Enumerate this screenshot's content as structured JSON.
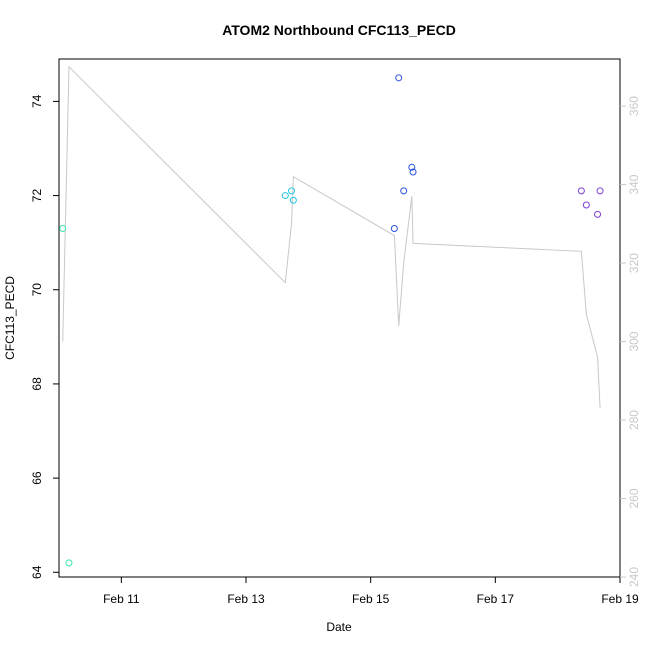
{
  "chart_data": {
    "type": "scatter",
    "title": "ATOM2 Northbound CFC113_PECD",
    "xlabel": "Date",
    "ylabel": "CFC113_PECD",
    "x_ticks": [
      {
        "day": 11,
        "label": "Feb 11"
      },
      {
        "day": 13,
        "label": "Feb 13"
      },
      {
        "day": 15,
        "label": "Feb 15"
      },
      {
        "day": 17,
        "label": "Feb 17"
      },
      {
        "day": 19,
        "label": "Feb 19"
      }
    ],
    "xlim_days": [
      10.0,
      19.0
    ],
    "ylim": [
      63.9,
      74.9
    ],
    "y_ticks": [
      64,
      66,
      68,
      70,
      72,
      74
    ],
    "y2lim": [
      240,
      372
    ],
    "y2_ticks": [
      240,
      260,
      280,
      300,
      320,
      340,
      360
    ],
    "y2_color": "#c8c8c8",
    "points": [
      {
        "day": 10.06,
        "y": 71.3,
        "color": "#3be8b0"
      },
      {
        "day": 10.16,
        "y": 64.2,
        "color": "#3be8b0"
      },
      {
        "day": 13.63,
        "y": 72.0,
        "color": "#1ec6e0"
      },
      {
        "day": 13.73,
        "y": 72.1,
        "color": "#1ec6e0"
      },
      {
        "day": 13.76,
        "y": 71.9,
        "color": "#1ec6e0"
      },
      {
        "day": 15.38,
        "y": 71.3,
        "color": "#2a52e0"
      },
      {
        "day": 15.45,
        "y": 74.5,
        "color": "#2a52e0"
      },
      {
        "day": 15.53,
        "y": 72.1,
        "color": "#2a52e0"
      },
      {
        "day": 15.66,
        "y": 72.6,
        "color": "#2a52e0"
      },
      {
        "day": 15.68,
        "y": 72.5,
        "color": "#2a52e0"
      },
      {
        "day": 18.38,
        "y": 72.1,
        "color": "#7a3fd8"
      },
      {
        "day": 18.46,
        "y": 71.8,
        "color": "#7a3fd8"
      },
      {
        "day": 18.64,
        "y": 71.6,
        "color": "#7a3fd8"
      },
      {
        "day": 18.68,
        "y": 72.1,
        "color": "#7a3fd8"
      }
    ],
    "line_series": {
      "axis": "right",
      "color": "#c8c8c8",
      "points": [
        {
          "day": 10.06,
          "y": 300
        },
        {
          "day": 10.16,
          "y": 370
        },
        {
          "day": 13.63,
          "y": 315
        },
        {
          "day": 13.73,
          "y": 330
        },
        {
          "day": 13.76,
          "y": 342
        },
        {
          "day": 15.38,
          "y": 327
        },
        {
          "day": 15.45,
          "y": 304
        },
        {
          "day": 15.53,
          "y": 320
        },
        {
          "day": 15.66,
          "y": 337
        },
        {
          "day": 15.68,
          "y": 325
        },
        {
          "day": 18.38,
          "y": 323
        },
        {
          "day": 18.46,
          "y": 307
        },
        {
          "day": 18.64,
          "y": 296
        },
        {
          "day": 18.68,
          "y": 283
        }
      ]
    }
  }
}
